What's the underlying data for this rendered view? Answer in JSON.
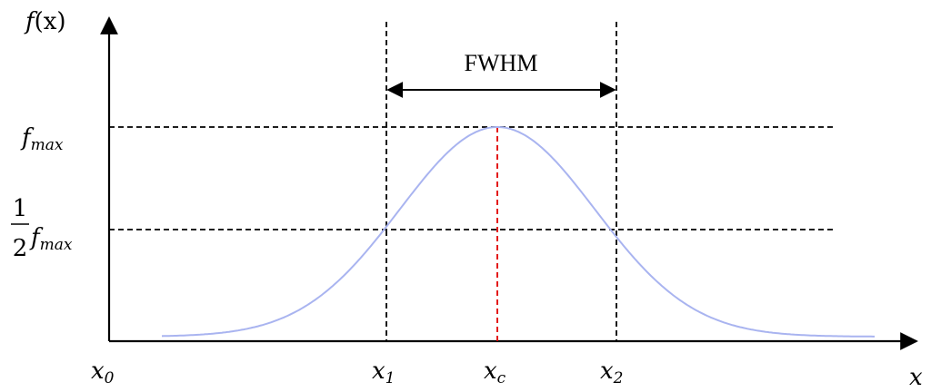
{
  "diagram": {
    "fwhm_label": "FWHM",
    "y_axis_label": {
      "base": "f",
      "arg": "(x)"
    },
    "x_axis_label": "x",
    "f_max_label": {
      "base": "f",
      "sub": "max"
    },
    "half_max_label": {
      "numerator": "1",
      "denominator": "2",
      "base": "f",
      "sub": "max"
    },
    "ticks": [
      {
        "base": "x",
        "sub": "0"
      },
      {
        "base": "x",
        "sub": "1"
      },
      {
        "base": "x",
        "sub": "c"
      },
      {
        "base": "x",
        "sub": "2"
      }
    ],
    "colors": {
      "curve": "#a9b4f0",
      "center_line": "#e00000",
      "lines": "#000000"
    }
  }
}
